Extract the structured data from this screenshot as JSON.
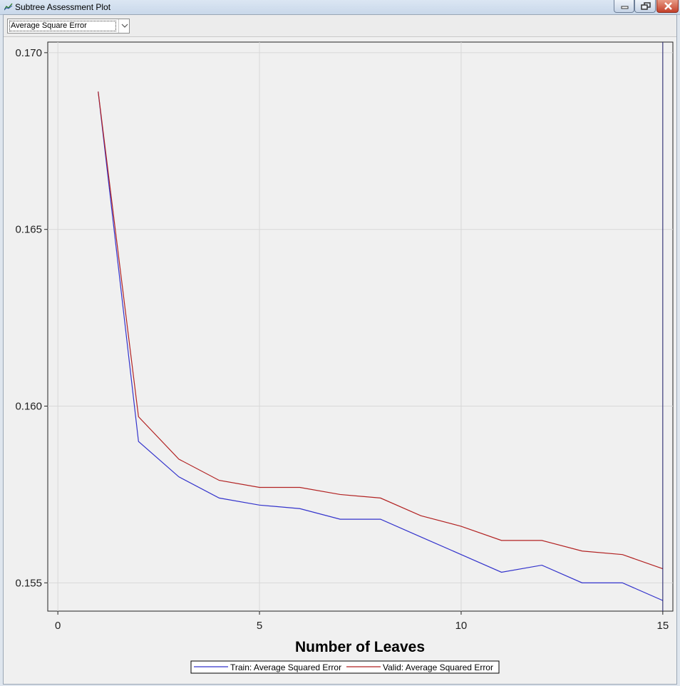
{
  "window": {
    "title": "Subtree Assessment Plot",
    "controls": [
      "minimize",
      "restore",
      "close"
    ]
  },
  "toolbar": {
    "statistic_select": {
      "value": "Average Square Error"
    }
  },
  "colors": {
    "train": "#3333cc",
    "valid": "#b22222",
    "selected_line": "#1a1a66",
    "plot_background": "#f0f0f0",
    "grid": "#d8d8d8"
  },
  "chart_data": {
    "type": "line",
    "xlabel": "Number of Leaves",
    "ylabel": "",
    "xlim": [
      -0.25,
      15.25
    ],
    "ylim": [
      0.1542,
      0.1703
    ],
    "xticks": [
      0,
      5,
      10,
      15
    ],
    "xtick_labels": [
      "0",
      "5",
      "10",
      "15"
    ],
    "yticks": [
      0.155,
      0.16,
      0.165,
      0.17
    ],
    "ytick_labels": [
      "0.155",
      "0.160",
      "0.165",
      "0.170"
    ],
    "grid": true,
    "legend": "bottom",
    "selected_leaves": 15,
    "x": [
      1,
      2,
      3,
      4,
      5,
      6,
      7,
      8,
      9,
      10,
      11,
      12,
      13,
      14,
      15
    ],
    "series": [
      {
        "name": "Train: Average Squared Error",
        "color": "#3333cc",
        "values": [
          0.1689,
          0.159,
          0.158,
          0.1574,
          0.1572,
          0.1571,
          0.1568,
          0.1568,
          0.1563,
          0.1558,
          0.1553,
          0.1555,
          0.155,
          0.155,
          0.1545
        ]
      },
      {
        "name": "Valid: Average Squared Error",
        "color": "#b22222",
        "values": [
          0.1689,
          0.1597,
          0.1585,
          0.1579,
          0.1577,
          0.1577,
          0.1575,
          0.1574,
          0.1569,
          0.1566,
          0.1562,
          0.1562,
          0.1559,
          0.1558,
          0.1554
        ]
      }
    ]
  }
}
